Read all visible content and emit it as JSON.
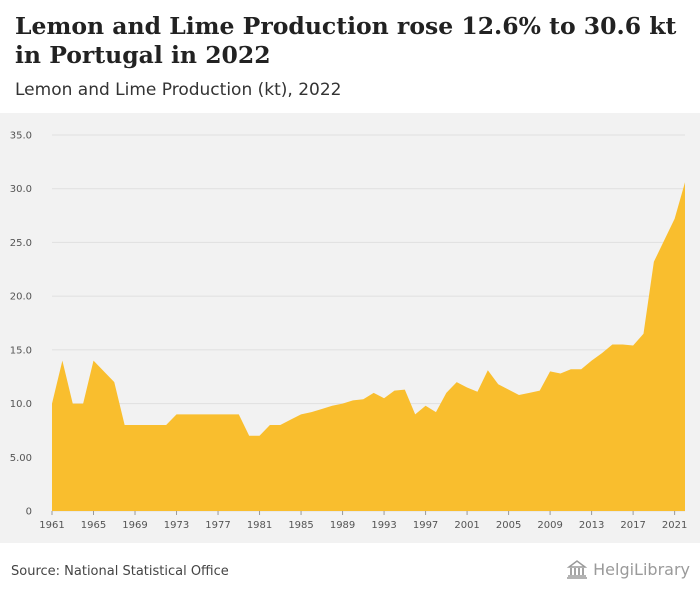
{
  "header": {
    "title": "Lemon and Lime Production rose 12.6% to 30.6 kt in Portugal in 2022",
    "subtitle": "Lemon and Lime Production (kt), 2022"
  },
  "footer": {
    "source": "Source: National Statistical Office",
    "logo_text": "HelgiLibrary"
  },
  "colors": {
    "area": "#f9be2e",
    "grid": "#e0e0e0",
    "background": "#f2f2f2"
  },
  "chart_data": {
    "type": "area",
    "title": "Lemon and Lime Production rose 12.6% to 30.6 kt in Portugal in 2022",
    "subtitle": "Lemon and Lime Production (kt), 2022",
    "xlabel": "",
    "ylabel": "",
    "ylim": [
      0,
      35
    ],
    "y_ticks": [
      "0",
      "5.00",
      "10.0",
      "15.0",
      "20.0",
      "25.0",
      "30.0",
      "35.0"
    ],
    "y_tick_values": [
      0,
      5,
      10,
      15,
      20,
      25,
      30,
      35
    ],
    "x_ticks": [
      1961,
      1965,
      1969,
      1973,
      1977,
      1981,
      1985,
      1989,
      1993,
      1997,
      2001,
      2005,
      2009,
      2013,
      2017,
      2021
    ],
    "grid": true,
    "series": [
      {
        "x": [
          1961,
          1962,
          1963,
          1964,
          1965,
          1966,
          1967,
          1968,
          1969,
          1970,
          1971,
          1972,
          1973,
          1974,
          1975,
          1976,
          1977,
          1978,
          1979,
          1980,
          1981,
          1982,
          1983,
          1984,
          1985,
          1986,
          1987,
          1988,
          1989,
          1990,
          1991,
          1992,
          1993,
          1994,
          1995,
          1996,
          1997,
          1998,
          1999,
          2000,
          2001,
          2002,
          2003,
          2004,
          2005,
          2006,
          2007,
          2008,
          2009,
          2010,
          2011,
          2012,
          2013,
          2014,
          2015,
          2016,
          2017,
          2018,
          2019,
          2020,
          2021,
          2022
        ],
        "values": [
          10.0,
          14.0,
          10.0,
          10.0,
          14.0,
          13.0,
          12.0,
          8.0,
          8.0,
          8.0,
          8.0,
          8.0,
          9.0,
          9.0,
          9.0,
          9.0,
          9.0,
          9.0,
          9.0,
          7.0,
          7.0,
          8.0,
          8.0,
          8.5,
          9.0,
          9.2,
          9.5,
          9.8,
          10.0,
          10.3,
          10.4,
          11.0,
          10.5,
          11.2,
          11.3,
          9.0,
          9.8,
          9.2,
          11.0,
          12.0,
          11.5,
          11.1,
          13.1,
          11.8,
          11.3,
          10.8,
          11.0,
          11.2,
          13.0,
          12.8,
          13.2,
          13.2,
          14.0,
          14.7,
          15.5,
          15.5,
          15.4,
          16.5,
          23.2,
          25.2,
          27.2,
          30.6
        ]
      }
    ]
  }
}
